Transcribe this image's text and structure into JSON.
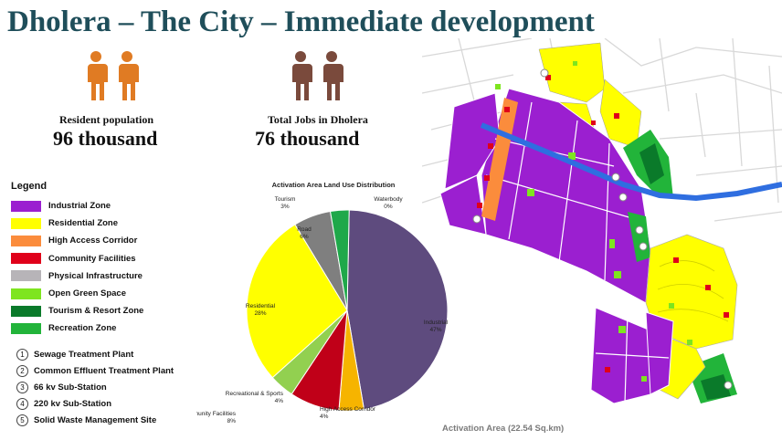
{
  "header": {
    "title": "Dholera – The City – Immediate development"
  },
  "stats": {
    "resident": {
      "label": "Resident population",
      "value": "96 thousand",
      "icon": "people-orange-icon",
      "color": "#e07b23"
    },
    "jobs": {
      "label": "Total Jobs in Dholera",
      "value": "76 thousand",
      "icon": "people-brown-icon",
      "color": "#7a4a3c"
    }
  },
  "legend": {
    "title": "Legend",
    "items": [
      {
        "label": "Industrial Zone",
        "color": "#9b1fd0"
      },
      {
        "label": "Residential Zone",
        "color": "#ffff00"
      },
      {
        "label": "High Access Corridor",
        "color": "#fb8c3c"
      },
      {
        "label": "Community Facilities",
        "color": "#e0001a"
      },
      {
        "label": "Physical Infrastructure",
        "color": "#b7b4b8"
      },
      {
        "label": "Open Green Space",
        "color": "#7ee51f"
      },
      {
        "label": "Tourism & Resort Zone",
        "color": "#0a7a2a"
      },
      {
        "label": "Recreation Zone",
        "color": "#22b43a"
      }
    ]
  },
  "facilities": [
    {
      "num": "1",
      "label": "Sewage Treatment Plant"
    },
    {
      "num": "2",
      "label": "Common Effluent Treatment Plant"
    },
    {
      "num": "3",
      "label": "66 kv Sub-Station"
    },
    {
      "num": "4",
      "label": "220 kv Sub-Station"
    },
    {
      "num": "5",
      "label": "Solid Waste Management Site"
    }
  ],
  "chart_data": {
    "type": "pie",
    "title": "Activation Area Land Use Distribution",
    "slices": [
      {
        "label": "Industrial",
        "value": 47,
        "pct": "47%",
        "color": "#5e4b7e"
      },
      {
        "label": "High Access Corridor",
        "value": 4,
        "pct": "4%",
        "color": "#f6b400"
      },
      {
        "label": "Community Facilities",
        "value": 8,
        "pct": "8%",
        "color": "#c00018"
      },
      {
        "label": "Recreational & Sports",
        "value": 4,
        "pct": "4%",
        "color": "#92d050"
      },
      {
        "label": "Residential",
        "value": 28,
        "pct": "28%",
        "color": "#ffff00"
      },
      {
        "label": "Road",
        "value": 6,
        "pct": "6%",
        "color": "#7f7f7f"
      },
      {
        "label": "Tourism",
        "value": 3,
        "pct": "3%",
        "color": "#1fa84a"
      },
      {
        "label": "Waterbody",
        "value": 0,
        "pct": "0%",
        "color": "#4472c4"
      }
    ]
  },
  "map": {
    "caption": "Activation Area (22.54 Sq.km)"
  }
}
